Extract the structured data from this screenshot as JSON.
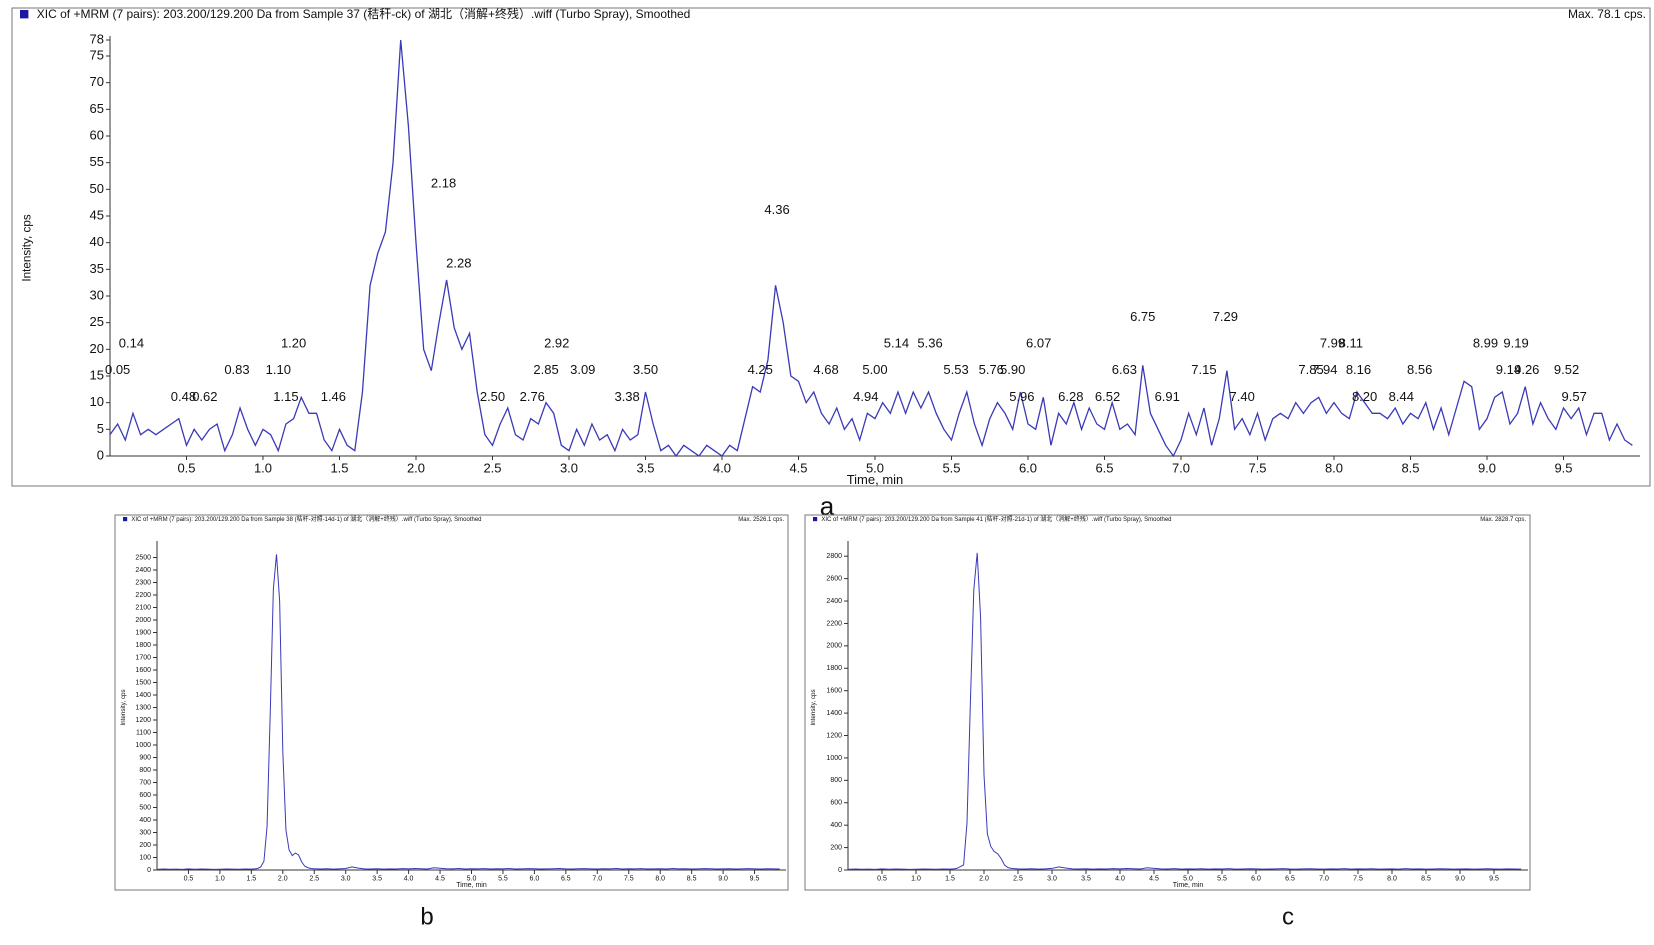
{
  "chart_data": [
    {
      "type": "line",
      "panel_label": "a",
      "title": "XIC of +MRM (7 pairs): 203.200/129.200 Da  from Sample 37 (秸秆-ck) of 湖北（消解+终残）.wiff (Turbo Spray), Smoothed",
      "max_label": "Max. 78.1 cps.",
      "xlabel": "Time, min",
      "ylabel": "Intensity, cps",
      "color": "#3a3ab8",
      "xlim": [
        0,
        10
      ],
      "ylim": [
        0,
        78
      ],
      "xticks": [
        0.5,
        {
          "value": 1,
          "label": "1.0"
        },
        1.5,
        {
          "value": 2,
          "label": "2.0"
        },
        2.5,
        {
          "value": 3,
          "label": "3.0"
        },
        3.5,
        {
          "value": 4,
          "label": "4.0"
        },
        4.5,
        {
          "value": 5,
          "label": "5.0"
        },
        5.5,
        {
          "value": 6,
          "label": "6.0"
        },
        6.5,
        {
          "value": 7,
          "label": "7.0"
        },
        7.5,
        {
          "value": 8,
          "label": "8.0"
        },
        8.5,
        {
          "value": 9,
          "label": "9.0"
        },
        9.5
      ],
      "yticks": [
        0,
        5,
        10,
        15,
        20,
        25,
        30,
        35,
        40,
        45,
        50,
        55,
        60,
        65,
        70,
        75,
        78
      ],
      "x": [
        0,
        0.05,
        0.1,
        0.15,
        0.2,
        0.25,
        0.3,
        0.35,
        0.4,
        0.45,
        0.5,
        0.55,
        0.6,
        0.65,
        0.7,
        0.75,
        0.8,
        0.85,
        0.9,
        0.95,
        1,
        1.05,
        1.1,
        1.15,
        1.2,
        1.25,
        1.3,
        1.35,
        1.4,
        1.45,
        1.5,
        1.55,
        1.6,
        1.65,
        1.7,
        1.75,
        1.8,
        1.85,
        1.9,
        1.95,
        2,
        2.05,
        2.1,
        2.15,
        2.2,
        2.25,
        2.3,
        2.35,
        2.4,
        2.45,
        2.5,
        2.55,
        2.6,
        2.65,
        2.7,
        2.75,
        2.8,
        2.85,
        2.9,
        2.95,
        3,
        3.05,
        3.1,
        3.15,
        3.2,
        3.25,
        3.3,
        3.35,
        3.4,
        3.45,
        3.5,
        3.55,
        3.6,
        3.65,
        3.7,
        3.75,
        3.8,
        3.85,
        3.9,
        3.95,
        4,
        4.05,
        4.1,
        4.15,
        4.2,
        4.25,
        4.3,
        4.35,
        4.4,
        4.45,
        4.5,
        4.55,
        4.6,
        4.65,
        4.7,
        4.75,
        4.8,
        4.85,
        4.9,
        4.95,
        5,
        5.05,
        5.1,
        5.15,
        5.2,
        5.25,
        5.3,
        5.35,
        5.4,
        5.45,
        5.5,
        5.55,
        5.6,
        5.65,
        5.7,
        5.75,
        5.8,
        5.85,
        5.9,
        5.95,
        6,
        6.05,
        6.1,
        6.15,
        6.2,
        6.25,
        6.3,
        6.35,
        6.4,
        6.45,
        6.5,
        6.55,
        6.6,
        6.65,
        6.7,
        6.75,
        6.8,
        6.85,
        6.9,
        6.95,
        7,
        7.05,
        7.1,
        7.15,
        7.2,
        7.25,
        7.3,
        7.35,
        7.4,
        7.45,
        7.5,
        7.55,
        7.6,
        7.65,
        7.7,
        7.75,
        7.8,
        7.85,
        7.9,
        7.95,
        8,
        8.05,
        8.1,
        8.15,
        8.2,
        8.25,
        8.3,
        8.35,
        8.4,
        8.45,
        8.5,
        8.55,
        8.6,
        8.65,
        8.7,
        8.75,
        8.8,
        8.85,
        8.9,
        8.95,
        9,
        9.05,
        9.1,
        9.15,
        9.2,
        9.25,
        9.3,
        9.35,
        9.4,
        9.45,
        9.5,
        9.55,
        9.6,
        9.65,
        9.7,
        9.75,
        9.8,
        9.85,
        9.9,
        9.95
      ],
      "values": [
        4,
        6,
        3,
        8,
        4,
        5,
        4,
        5,
        6,
        7,
        2,
        5,
        3,
        5,
        6,
        1,
        4,
        9,
        5,
        2,
        5,
        4,
        1,
        6,
        7,
        11,
        8,
        8,
        3,
        1,
        5,
        2,
        1,
        12,
        32,
        38,
        42,
        55,
        78,
        62,
        40,
        20,
        16,
        25,
        33,
        24,
        20,
        23,
        12,
        4,
        2,
        6,
        9,
        4,
        3,
        7,
        6,
        10,
        8,
        2,
        1,
        5,
        2,
        6,
        3,
        4,
        1,
        5,
        3,
        4,
        12,
        6,
        1,
        2,
        0,
        2,
        1,
        0,
        2,
        1,
        0,
        2,
        1,
        7,
        13,
        12,
        18,
        32,
        25,
        15,
        14,
        10,
        12,
        8,
        6,
        9,
        5,
        7,
        3,
        8,
        7,
        10,
        8,
        12,
        8,
        12,
        9,
        12,
        8,
        5,
        3,
        8,
        12,
        6,
        2,
        7,
        10,
        8,
        5,
        12,
        6,
        5,
        11,
        2,
        8,
        6,
        10,
        5,
        9,
        6,
        5,
        10,
        5,
        6,
        4,
        17,
        8,
        5,
        2,
        0,
        3,
        8,
        4,
        9,
        2,
        7,
        16,
        5,
        7,
        4,
        8,
        3,
        7,
        8,
        7,
        10,
        8,
        10,
        11,
        8,
        10,
        8,
        7,
        12,
        10,
        8,
        8,
        7,
        9,
        6,
        8,
        7,
        10,
        5,
        9,
        4,
        9,
        14,
        13,
        5,
        7,
        11,
        12,
        6,
        8,
        13,
        6,
        10,
        7,
        5,
        9,
        7,
        9,
        4,
        8,
        8,
        3,
        6,
        3,
        2
      ],
      "annotations": [
        {
          "x": 0.14,
          "y": 21,
          "label": "0.14"
        },
        {
          "x": 0.05,
          "y": 16,
          "label": "0.05"
        },
        {
          "x": 0.48,
          "y": 11,
          "label": "0.48"
        },
        {
          "x": 0.62,
          "y": 11,
          "label": "0.62"
        },
        {
          "x": 0.83,
          "y": 16,
          "label": "0.83"
        },
        {
          "x": 1.1,
          "y": 16,
          "label": "1.10"
        },
        {
          "x": 1.2,
          "y": 21,
          "label": "1.20"
        },
        {
          "x": 1.15,
          "y": 11,
          "label": "1.15"
        },
        {
          "x": 1.46,
          "y": 11,
          "label": "1.46"
        },
        {
          "x": 2.18,
          "y": 51,
          "label": "2.18"
        },
        {
          "x": 2.28,
          "y": 36,
          "label": "2.28"
        },
        {
          "x": 2.5,
          "y": 11,
          "label": "2.50"
        },
        {
          "x": 2.76,
          "y": 11,
          "label": "2.76"
        },
        {
          "x": 2.92,
          "y": 21,
          "label": "2.92"
        },
        {
          "x": 2.85,
          "y": 16,
          "label": "2.85"
        },
        {
          "x": 3.09,
          "y": 16,
          "label": "3.09"
        },
        {
          "x": 3.5,
          "y": 16,
          "label": "3.50"
        },
        {
          "x": 3.38,
          "y": 11,
          "label": "3.38"
        },
        {
          "x": 4.36,
          "y": 46,
          "label": "4.36"
        },
        {
          "x": 4.25,
          "y": 16,
          "label": "4.25"
        },
        {
          "x": 4.68,
          "y": 16,
          "label": "4.68"
        },
        {
          "x": 5.0,
          "y": 16,
          "label": "5.00"
        },
        {
          "x": 4.94,
          "y": 11,
          "label": "4.94"
        },
        {
          "x": 5.14,
          "y": 21,
          "label": "5.14"
        },
        {
          "x": 5.36,
          "y": 21,
          "label": "5.36"
        },
        {
          "x": 5.53,
          "y": 16,
          "label": "5.53"
        },
        {
          "x": 5.76,
          "y": 16,
          "label": "5.76"
        },
        {
          "x": 5.9,
          "y": 16,
          "label": "5.90"
        },
        {
          "x": 5.96,
          "y": 11,
          "label": "5.96"
        },
        {
          "x": 6.07,
          "y": 21,
          "label": "6.07"
        },
        {
          "x": 6.28,
          "y": 11,
          "label": "6.28"
        },
        {
          "x": 6.52,
          "y": 11,
          "label": "6.52"
        },
        {
          "x": 6.63,
          "y": 16,
          "label": "6.63"
        },
        {
          "x": 6.75,
          "y": 26,
          "label": "6.75"
        },
        {
          "x": 6.91,
          "y": 11,
          "label": "6.91"
        },
        {
          "x": 7.15,
          "y": 16,
          "label": "7.15"
        },
        {
          "x": 7.29,
          "y": 26,
          "label": "7.29"
        },
        {
          "x": 7.4,
          "y": 11,
          "label": "7.40"
        },
        {
          "x": 7.85,
          "y": 16,
          "label": "7.85"
        },
        {
          "x": 7.94,
          "y": 16,
          "label": "7.94"
        },
        {
          "x": 7.99,
          "y": 21,
          "label": "7.99"
        },
        {
          "x": 8.11,
          "y": 21,
          "label": "8.11"
        },
        {
          "x": 8.16,
          "y": 16,
          "label": "8.16"
        },
        {
          "x": 8.56,
          "y": 16,
          "label": "8.56"
        },
        {
          "x": 8.2,
          "y": 11,
          "label": "8.20"
        },
        {
          "x": 8.44,
          "y": 11,
          "label": "8.44"
        },
        {
          "x": 8.99,
          "y": 21,
          "label": "8.99"
        },
        {
          "x": 9.19,
          "y": 21,
          "label": "9.19"
        },
        {
          "x": 9.14,
          "y": 16,
          "label": "9.14"
        },
        {
          "x": 9.26,
          "y": 16,
          "label": "9.26"
        },
        {
          "x": 9.52,
          "y": 16,
          "label": "9.52"
        },
        {
          "x": 9.57,
          "y": 11,
          "label": "9.57"
        }
      ]
    },
    {
      "type": "line",
      "panel_label": "b",
      "title": "XIC of +MRM (7 pairs): 203.200/129.200 Da  from Sample 38 (秸秆-对照-14d-1) of 湖北（消解+终残）.wiff (Turbo Spray), Smoothed",
      "max_label": "Max. 2526.1 cps.",
      "xlabel": "Time, min",
      "ylabel": "Intensity, cps",
      "color": "#3a3ab8",
      "xlim": [
        0,
        10
      ],
      "ylim": [
        0,
        2600
      ],
      "xticks": [
        0.5,
        {
          "value": 1,
          "label": "1.0"
        },
        1.5,
        {
          "value": 2,
          "label": "2.0"
        },
        2.5,
        {
          "value": 3,
          "label": "3.0"
        },
        3.5,
        {
          "value": 4,
          "label": "4.0"
        },
        4.5,
        {
          "value": 5,
          "label": "5.0"
        },
        5.5,
        {
          "value": 6,
          "label": "6.0"
        },
        6.5,
        {
          "value": 7,
          "label": "7.0"
        },
        7.5,
        {
          "value": 8,
          "label": "8.0"
        },
        8.5,
        {
          "value": 9,
          "label": "9.0"
        },
        9.5
      ],
      "yticks": [
        0,
        100,
        200,
        300,
        400,
        500,
        600,
        700,
        800,
        900,
        1000,
        1100,
        1200,
        1300,
        1400,
        1500,
        1600,
        1700,
        1800,
        1900,
        2000,
        2100,
        2200,
        2300,
        2400,
        2500
      ],
      "x": [
        0,
        0.1,
        0.2,
        0.3,
        0.4,
        0.5,
        0.6,
        0.7,
        0.8,
        0.9,
        1,
        1.1,
        1.2,
        1.3,
        1.4,
        1.5,
        1.55,
        1.6,
        1.65,
        1.7,
        1.75,
        1.8,
        1.85,
        1.9,
        1.95,
        2,
        2.05,
        2.1,
        2.15,
        2.2,
        2.25,
        2.3,
        2.35,
        2.4,
        2.45,
        2.5,
        2.6,
        2.7,
        2.8,
        2.9,
        3,
        3.1,
        3.2,
        3.3,
        3.4,
        3.5,
        3.6,
        3.7,
        3.8,
        3.9,
        4,
        4.1,
        4.2,
        4.3,
        4.4,
        4.5,
        4.6,
        4.7,
        4.8,
        4.9,
        5,
        5.1,
        5.2,
        5.3,
        5.4,
        5.5,
        5.6,
        5.7,
        5.8,
        5.9,
        6,
        6.1,
        6.2,
        6.3,
        6.4,
        6.5,
        6.6,
        6.7,
        6.8,
        6.9,
        7,
        7.1,
        7.2,
        7.3,
        7.4,
        7.5,
        7.6,
        7.7,
        7.8,
        7.9,
        8,
        8.1,
        8.2,
        8.3,
        8.4,
        8.5,
        8.6,
        8.7,
        8.8,
        8.9,
        9,
        9.1,
        9.2,
        9.3,
        9.4,
        9.5,
        9.6,
        9.7,
        9.8,
        9.9
      ],
      "values": [
        5,
        8,
        6,
        7,
        5,
        9,
        6,
        8,
        7,
        5,
        6,
        8,
        7,
        6,
        8,
        7,
        9,
        12,
        25,
        70,
        350,
        1250,
        2250,
        2526,
        2150,
        950,
        320,
        160,
        115,
        135,
        120,
        65,
        30,
        18,
        12,
        10,
        8,
        10,
        7,
        9,
        12,
        25,
        15,
        9,
        8,
        10,
        7,
        9,
        8,
        11,
        9,
        12,
        10,
        8,
        18,
        14,
        10,
        9,
        12,
        8,
        10,
        9,
        11,
        8,
        10,
        9,
        12,
        8,
        9,
        11,
        10,
        8,
        9,
        10,
        12,
        9,
        8,
        10,
        11,
        9,
        8,
        10,
        9,
        12,
        8,
        10,
        9,
        11,
        8,
        9,
        10,
        8,
        12,
        9,
        10,
        8,
        9,
        11,
        10,
        8,
        9,
        10,
        8,
        9,
        11,
        9,
        8,
        10,
        9,
        8
      ]
    },
    {
      "type": "line",
      "panel_label": "c",
      "title": "XIC of +MRM (7 pairs): 203.200/129.200 Da  from Sample 41 (秸秆-对照-21d-1) of 湖北（消解+终残）.wiff (Turbo Spray), Smoothed",
      "max_label": "Max. 2828.7 cps.",
      "xlabel": "Time, min",
      "ylabel": "Intensity, cps",
      "color": "#3a3ab8",
      "xlim": [
        0,
        10
      ],
      "ylim": [
        0,
        2900
      ],
      "xticks": [
        0.5,
        {
          "value": 1,
          "label": "1.0"
        },
        1.5,
        {
          "value": 2,
          "label": "2.0"
        },
        2.5,
        {
          "value": 3,
          "label": "3.0"
        },
        3.5,
        {
          "value": 4,
          "label": "4.0"
        },
        4.5,
        {
          "value": 5,
          "label": "5.0"
        },
        5.5,
        {
          "value": 6,
          "label": "6.0"
        },
        6.5,
        {
          "value": 7,
          "label": "7.0"
        },
        7.5,
        {
          "value": 8,
          "label": "8.0"
        },
        8.5,
        {
          "value": 9,
          "label": "9.0"
        },
        9.5
      ],
      "yticks": [
        0,
        200,
        400,
        600,
        800,
        1000,
        1200,
        1400,
        1600,
        1800,
        2000,
        2200,
        2400,
        2600,
        2800
      ],
      "x": [
        0,
        0.1,
        0.2,
        0.3,
        0.4,
        0.5,
        0.6,
        0.7,
        0.8,
        0.9,
        1,
        1.1,
        1.2,
        1.3,
        1.4,
        1.5,
        1.55,
        1.6,
        1.65,
        1.7,
        1.75,
        1.8,
        1.85,
        1.9,
        1.95,
        2,
        2.05,
        2.1,
        2.15,
        2.2,
        2.25,
        2.3,
        2.35,
        2.4,
        2.45,
        2.5,
        2.6,
        2.7,
        2.8,
        2.9,
        3,
        3.1,
        3.2,
        3.3,
        3.4,
        3.5,
        3.6,
        3.7,
        3.8,
        3.9,
        4,
        4.1,
        4.2,
        4.3,
        4.4,
        4.5,
        4.6,
        4.7,
        4.8,
        4.9,
        5,
        5.1,
        5.2,
        5.3,
        5.4,
        5.5,
        5.6,
        5.7,
        5.8,
        5.9,
        6,
        6.1,
        6.2,
        6.3,
        6.4,
        6.5,
        6.6,
        6.7,
        6.8,
        6.9,
        7,
        7.1,
        7.2,
        7.3,
        7.4,
        7.5,
        7.6,
        7.7,
        7.8,
        7.9,
        8,
        8.1,
        8.2,
        8.3,
        8.4,
        8.5,
        8.6,
        8.7,
        8.8,
        8.9,
        9,
        9.1,
        9.2,
        9.3,
        9.4,
        9.5,
        9.6,
        9.7,
        9.8,
        9.9
      ],
      "values": [
        6,
        9,
        7,
        8,
        6,
        10,
        7,
        9,
        8,
        6,
        7,
        9,
        8,
        7,
        9,
        8,
        10,
        14,
        30,
        45,
        420,
        1500,
        2500,
        2829,
        2250,
        850,
        320,
        210,
        165,
        145,
        105,
        45,
        22,
        15,
        12,
        10,
        9,
        11,
        8,
        10,
        14,
        28,
        18,
        10,
        9,
        11,
        8,
        10,
        9,
        12,
        10,
        13,
        11,
        9,
        20,
        15,
        10,
        9,
        12,
        8,
        10,
        9,
        11,
        8,
        10,
        9,
        12,
        8,
        9,
        11,
        10,
        8,
        9,
        10,
        12,
        9,
        8,
        10,
        11,
        9,
        8,
        10,
        9,
        12,
        8,
        10,
        9,
        11,
        8,
        9,
        10,
        8,
        12,
        9,
        10,
        8,
        9,
        11,
        10,
        8,
        9,
        10,
        8,
        9,
        11,
        9,
        8,
        10,
        9,
        8
      ]
    }
  ]
}
